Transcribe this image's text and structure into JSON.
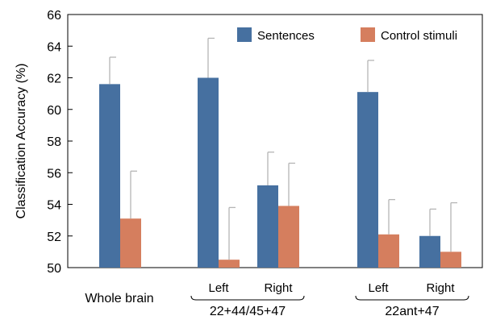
{
  "chart_data": {
    "type": "bar",
    "ylabel": "Classification Accuracy (%)",
    "ylim": [
      50,
      66
    ],
    "yticks": [
      50,
      52,
      54,
      56,
      58,
      60,
      62,
      64,
      66
    ],
    "grid": false,
    "legend_position": "top-right",
    "series": [
      {
        "name": "Sentences",
        "color": "#4670a0",
        "values": [
          61.6,
          62.0,
          55.2,
          61.1,
          52.0
        ],
        "errors": [
          1.7,
          2.5,
          2.1,
          2.0,
          1.7
        ]
      },
      {
        "name": "Control stimuli",
        "color": "#d57e5e",
        "values": [
          53.1,
          50.5,
          53.9,
          52.1,
          51.0
        ],
        "errors": [
          3.0,
          3.3,
          2.7,
          2.2,
          3.1
        ]
      }
    ],
    "categories": [
      "Whole brain",
      "Left",
      "Right",
      "Left",
      "Right"
    ],
    "groups": [
      {
        "label": "Whole brain",
        "members": [
          0
        ]
      },
      {
        "label": "22+44/45+47",
        "members": [
          1,
          2
        ]
      },
      {
        "label": "22ant+47",
        "members": [
          3,
          4
        ]
      }
    ]
  }
}
